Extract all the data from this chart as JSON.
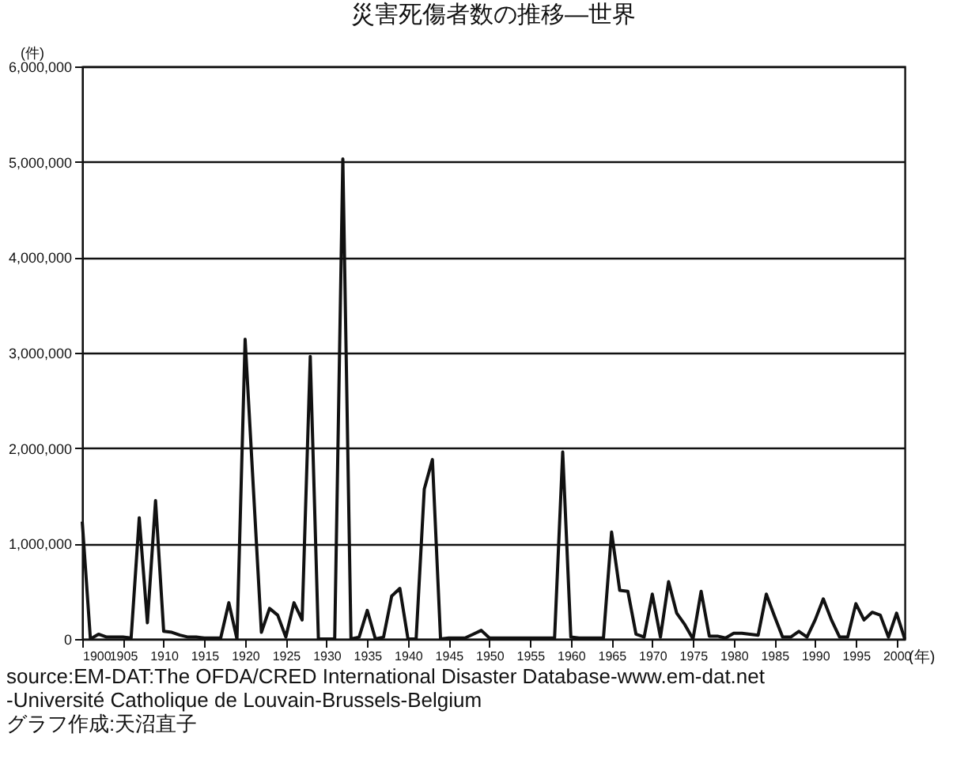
{
  "chart_data": {
    "type": "line",
    "title": "災害死傷者数の推移—世界",
    "xlabel": "(年)",
    "ylabel": "(件)",
    "x": [
      1900,
      1901,
      1902,
      1903,
      1904,
      1905,
      1906,
      1907,
      1908,
      1909,
      1910,
      1911,
      1912,
      1913,
      1914,
      1915,
      1916,
      1917,
      1918,
      1919,
      1920,
      1921,
      1922,
      1923,
      1924,
      1925,
      1926,
      1927,
      1928,
      1929,
      1930,
      1931,
      1932,
      1933,
      1934,
      1935,
      1936,
      1937,
      1938,
      1939,
      1940,
      1941,
      1942,
      1943,
      1944,
      1945,
      1946,
      1947,
      1948,
      1949,
      1950,
      1951,
      1952,
      1953,
      1954,
      1955,
      1956,
      1957,
      1958,
      1959,
      1960,
      1961,
      1962,
      1963,
      1964,
      1965,
      1966,
      1967,
      1968,
      1969,
      1970,
      1971,
      1972,
      1973,
      1974,
      1975,
      1976,
      1977,
      1978,
      1979,
      1980,
      1981,
      1982,
      1983,
      1984,
      1985,
      1986,
      1987,
      1988,
      1989,
      1990,
      1991,
      1992,
      1993,
      1994,
      1995,
      1996,
      1997,
      1998,
      1999,
      2000,
      2001
    ],
    "series": [
      {
        "color": "#111111",
        "values": [
          1230000,
          0,
          50000,
          20000,
          20000,
          20000,
          10000,
          1270000,
          170000,
          1450000,
          80000,
          70000,
          40000,
          20000,
          20000,
          10000,
          10000,
          10000,
          380000,
          0,
          3140000,
          1600000,
          70000,
          320000,
          250000,
          20000,
          380000,
          200000,
          2960000,
          0,
          0,
          0,
          5030000,
          0,
          20000,
          300000,
          0,
          20000,
          450000,
          530000,
          0,
          0,
          1570000,
          1880000,
          0,
          10000,
          10000,
          10000,
          50000,
          90000,
          10000,
          10000,
          10000,
          10000,
          10000,
          10000,
          10000,
          10000,
          10000,
          1960000,
          20000,
          10000,
          10000,
          10000,
          10000,
          1120000,
          510000,
          500000,
          50000,
          20000,
          470000,
          20000,
          600000,
          270000,
          150000,
          0,
          500000,
          30000,
          30000,
          10000,
          60000,
          60000,
          50000,
          40000,
          470000,
          240000,
          20000,
          20000,
          80000,
          20000,
          200000,
          420000,
          200000,
          20000,
          20000,
          370000,
          200000,
          280000,
          250000,
          20000,
          270000,
          0
        ]
      }
    ],
    "xlim": [
      1900,
      2001
    ],
    "xticks": [
      1900,
      1905,
      1910,
      1915,
      1920,
      1925,
      1930,
      1935,
      1940,
      1945,
      1950,
      1955,
      1960,
      1965,
      1970,
      1975,
      1980,
      1985,
      1990,
      1995,
      2000
    ],
    "ylim": [
      0,
      6000000
    ],
    "yticks": [
      0,
      {
        "value": 1000000,
        "label": "1,000,000"
      },
      {
        "value": 2000000,
        "label": "2,000,000"
      },
      {
        "value": 3000000,
        "label": "3,000,000"
      },
      {
        "value": 4000000,
        "label": "4,000,000"
      },
      {
        "value": 5000000,
        "label": "5,000,000"
      },
      {
        "value": 6000000,
        "label": "6,000,000"
      }
    ],
    "grid": "y",
    "marker": "none",
    "line_style": "solid",
    "annotations": [
      "source:EM-DAT:The OFDA/CRED International Disaster Database-www.em-dat.net",
      "-Université Catholique de Louvain-Brussels-Belgium",
      "グラフ作成:天沼直子"
    ]
  }
}
